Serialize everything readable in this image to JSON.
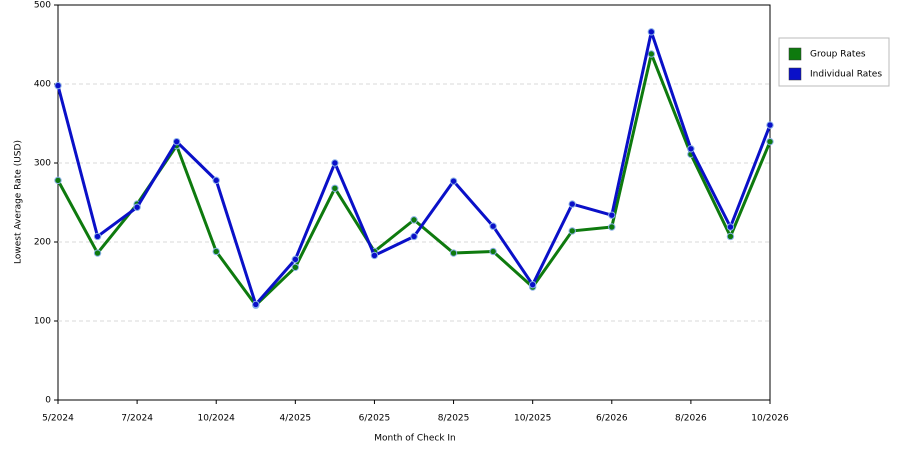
{
  "chart_data": {
    "type": "line",
    "x_label": "Month of Check In",
    "y_label": "Lowest Average Rate (USD)",
    "categories": [
      "5/2024",
      null,
      "7/2024",
      null,
      "10/2024",
      null,
      "4/2025",
      null,
      "6/2025",
      null,
      "8/2025",
      null,
      "10/2025",
      null,
      "6/2026",
      null,
      "8/2026",
      null,
      "10/2026"
    ],
    "series": [
      {
        "name": "Group Rates",
        "color": "#0e7a0e",
        "values": [
          278,
          186,
          248,
          322,
          188,
          120,
          168,
          268,
          188,
          228,
          186,
          188,
          143,
          214,
          219,
          438,
          311,
          207,
          327
        ]
      },
      {
        "name": "Individual Rates",
        "color": "#0a10c8",
        "values": [
          398,
          207,
          244,
          327,
          278,
          121,
          178,
          300,
          183,
          207,
          277,
          220,
          146,
          248,
          234,
          466,
          318,
          219,
          348
        ]
      }
    ],
    "ylim": [
      0,
      500
    ],
    "yticks": [
      0,
      100,
      200,
      300,
      400,
      500
    ],
    "grid": true,
    "legend": "right"
  }
}
